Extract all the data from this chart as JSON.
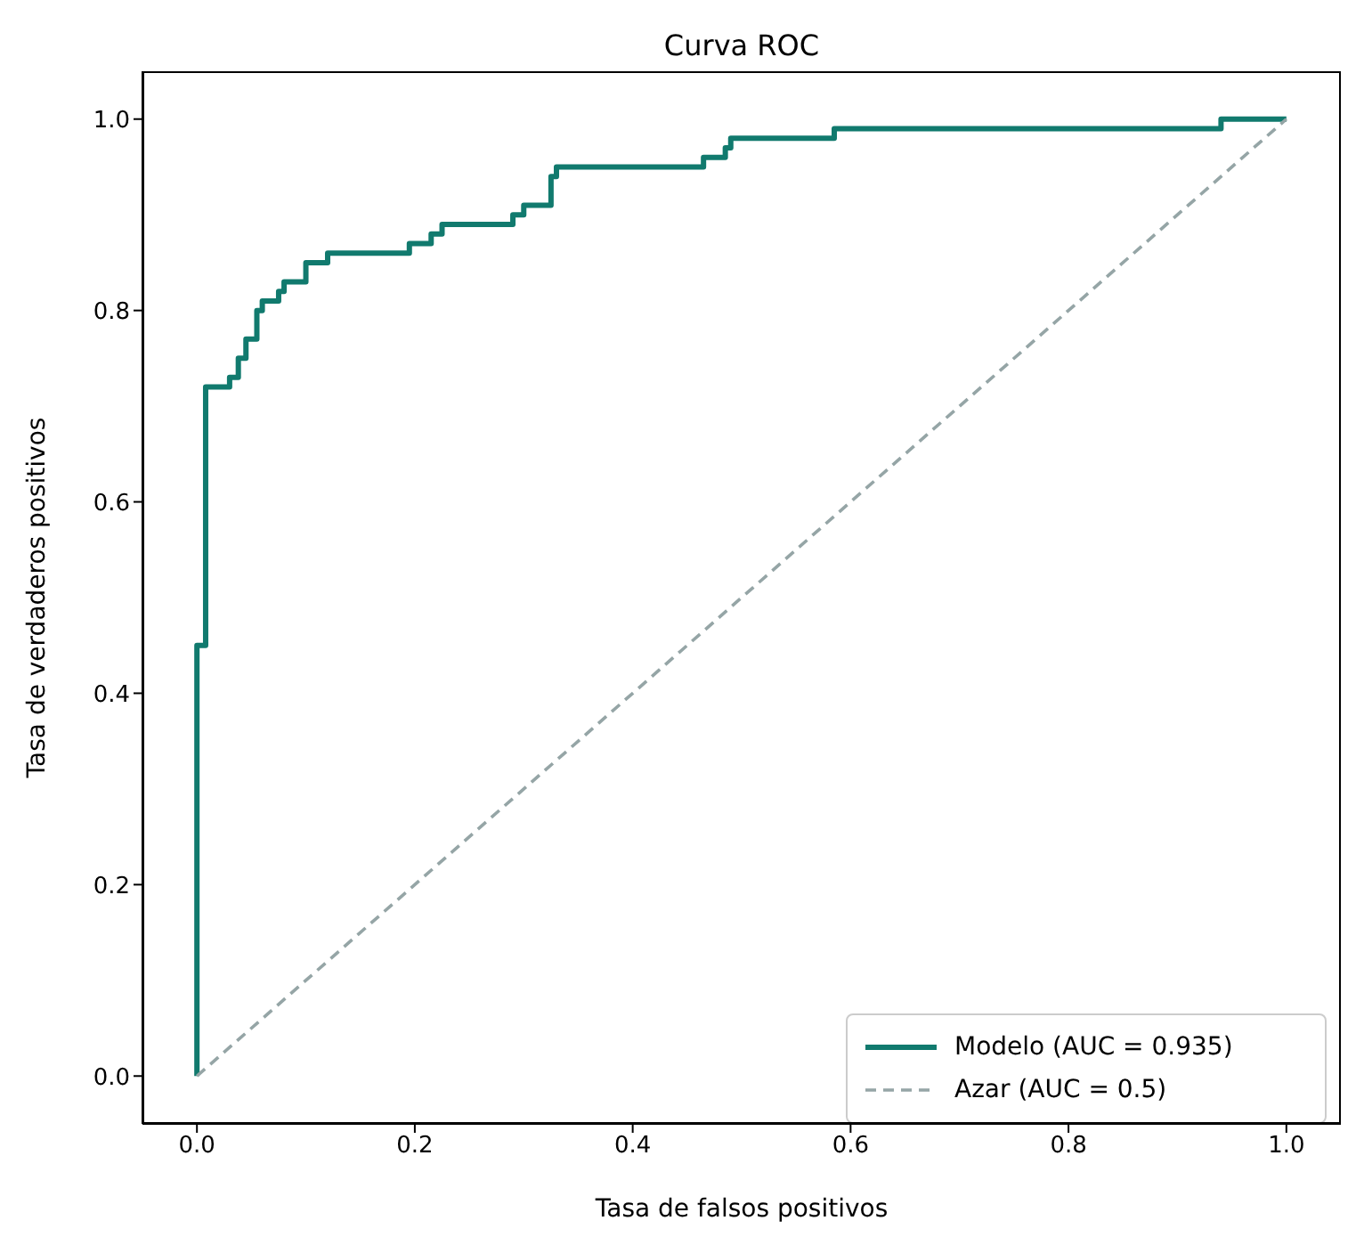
{
  "chart_data": {
    "type": "line",
    "title": "Curva ROC",
    "xlabel": "Tasa de falsos positivos",
    "ylabel": "Tasa de verdaderos positivos",
    "xlim": [
      -0.05,
      1.05
    ],
    "ylim": [
      -0.05,
      1.05
    ],
    "xticks": [
      {
        "value": 0,
        "label": "0.0"
      },
      {
        "value": 0.2,
        "label": "0.2"
      },
      {
        "value": 0.4,
        "label": "0.4"
      },
      {
        "value": 0.6,
        "label": "0.6"
      },
      {
        "value": 0.8,
        "label": "0.8"
      },
      {
        "value": 1,
        "label": "1.0"
      }
    ],
    "yticks": [
      {
        "value": 0,
        "label": "0.0"
      },
      {
        "value": 0.2,
        "label": "0.2"
      },
      {
        "value": 0.4,
        "label": "0.4"
      },
      {
        "value": 0.6,
        "label": "0.6"
      },
      {
        "value": 0.8,
        "label": "0.8"
      },
      {
        "value": 1,
        "label": "1.0"
      }
    ],
    "grid": false,
    "legend": "bottom right",
    "marker": "none",
    "series": [
      {
        "name": "Modelo (AUC = 0.935)",
        "color": "#117a6e",
        "line_style": "solid",
        "x": [
          0,
          0,
          0.008,
          0.008,
          0.03,
          0.03,
          0.038,
          0.038,
          0.045,
          0.045,
          0.055,
          0.055,
          0.06,
          0.06,
          0.075,
          0.075,
          0.08,
          0.08,
          0.1,
          0.1,
          0.12,
          0.12,
          0.195,
          0.195,
          0.215,
          0.215,
          0.225,
          0.225,
          0.29,
          0.29,
          0.3,
          0.3,
          0.325,
          0.325,
          0.33,
          0.33,
          0.465,
          0.465,
          0.485,
          0.485,
          0.49,
          0.49,
          0.585,
          0.585,
          0.94,
          0.94,
          1
        ],
        "values": [
          0,
          0.45,
          0.45,
          0.72,
          0.72,
          0.73,
          0.73,
          0.75,
          0.75,
          0.77,
          0.77,
          0.8,
          0.8,
          0.81,
          0.81,
          0.82,
          0.82,
          0.83,
          0.83,
          0.85,
          0.85,
          0.86,
          0.86,
          0.87,
          0.87,
          0.88,
          0.88,
          0.89,
          0.89,
          0.9,
          0.9,
          0.91,
          0.91,
          0.94,
          0.94,
          0.95,
          0.95,
          0.96,
          0.96,
          0.97,
          0.97,
          0.98,
          0.98,
          0.99,
          0.99,
          1,
          1
        ]
      },
      {
        "name": "Azar (AUC = 0.5)",
        "color": "#95a5a6",
        "line_style": "dashed",
        "x": [
          0,
          1
        ],
        "values": [
          0,
          1
        ]
      }
    ]
  }
}
